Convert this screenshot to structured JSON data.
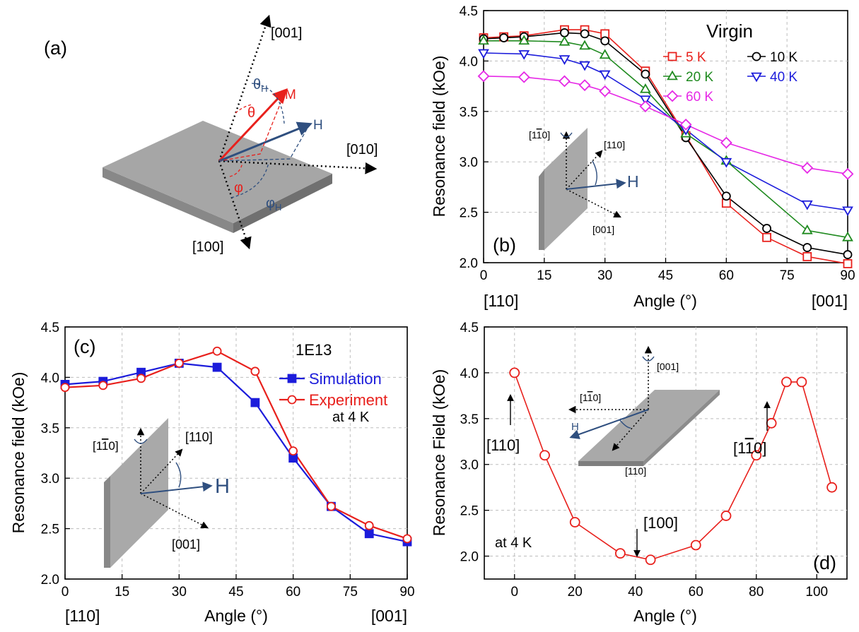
{
  "panel_a": {
    "label": "(a)",
    "axes": {
      "z": "[001]",
      "y": "[010]",
      "x": "[100]"
    },
    "vectors": {
      "magnetization": "M",
      "field": "H"
    },
    "angles": {
      "theta": "θ",
      "theta_h": "θ",
      "theta_h_sub": "H",
      "phi": "φ",
      "phi_h": "φ",
      "phi_h_sub": "H"
    },
    "colors": {
      "magnetization": "#e8201c",
      "field": "#2f4f7f",
      "slab_top": "#a9a9a9",
      "slab_side": "#7a7a7a"
    }
  },
  "chart_data": [
    {
      "id": "b",
      "type": "line",
      "panel_label": "(b)",
      "xlabel": "Angle (°)",
      "ylabel": "Resonance field (kOe)",
      "xlim": [
        0,
        90
      ],
      "ylim": [
        2.0,
        4.5
      ],
      "xticks": [
        0,
        15,
        30,
        45,
        60,
        75,
        90
      ],
      "yticks": [
        2.0,
        2.5,
        3.0,
        3.5,
        4.0,
        4.5
      ],
      "x_ends": {
        "left": "[110]",
        "right": "[001]"
      },
      "grid": true,
      "legend_title": "Virgin",
      "legend_position": "top-right",
      "inset": {
        "rotation_axis": "[1",
        "rotation_axis_bar": "1",
        "rotation_axis_end": "0]",
        "dir_a": "[110]",
        "dir_b": "[001]",
        "field": "H"
      },
      "series": [
        {
          "name": "5 K",
          "color": "#e8201c",
          "marker": "square",
          "x": [
            0,
            5,
            10,
            20,
            25,
            30,
            40,
            50,
            60,
            70,
            80,
            90
          ],
          "y": [
            4.23,
            4.24,
            4.25,
            4.31,
            4.31,
            4.27,
            3.9,
            3.26,
            2.59,
            2.25,
            2.06,
            1.99
          ]
        },
        {
          "name": "10 K",
          "color": "#000000",
          "marker": "circle",
          "x": [
            0,
            5,
            10,
            20,
            25,
            30,
            40,
            50,
            60,
            70,
            80,
            90
          ],
          "y": [
            4.22,
            4.23,
            4.24,
            4.28,
            4.27,
            4.2,
            3.87,
            3.24,
            2.66,
            2.34,
            2.15,
            2.08
          ]
        },
        {
          "name": "20 K",
          "color": "#1f8a1f",
          "marker": "triangle-up",
          "x": [
            0,
            10,
            20,
            25,
            30,
            40,
            50,
            60,
            80,
            90
          ],
          "y": [
            4.2,
            4.2,
            4.19,
            4.15,
            4.06,
            3.72,
            3.28,
            3.01,
            2.32,
            2.25
          ]
        },
        {
          "name": "40 K",
          "color": "#1c1cdb",
          "marker": "triangle-down",
          "x": [
            0,
            10,
            20,
            25,
            30,
            40,
            50,
            60,
            80,
            90
          ],
          "y": [
            4.08,
            4.07,
            4.02,
            3.96,
            3.87,
            3.62,
            3.32,
            3.0,
            2.58,
            2.52
          ]
        },
        {
          "name": "60 K",
          "color": "#e629e6",
          "marker": "diamond",
          "x": [
            0,
            10,
            20,
            25,
            30,
            40,
            50,
            60,
            80,
            90
          ],
          "y": [
            3.85,
            3.84,
            3.8,
            3.76,
            3.7,
            3.55,
            3.37,
            3.19,
            2.94,
            2.88
          ]
        }
      ]
    },
    {
      "id": "c",
      "type": "line",
      "panel_label": "(c)",
      "xlabel": "Angle (°)",
      "ylabel": "Resonance field (kOe)",
      "xlim": [
        0,
        90
      ],
      "ylim": [
        2.0,
        4.5
      ],
      "xticks": [
        0,
        15,
        30,
        45,
        60,
        75,
        90
      ],
      "yticks": [
        2.0,
        2.5,
        3.0,
        3.5,
        4.0,
        4.5
      ],
      "x_ends": {
        "left": "[110]",
        "right": "[001]"
      },
      "grid": true,
      "legend_title": "1E13",
      "legend_note": "at 4 K",
      "legend_position": "top-right",
      "inset": {
        "rotation_axis": "[1",
        "rotation_axis_bar": "1",
        "rotation_axis_end": "0]",
        "dir_a": "[110]",
        "dir_b": "[001]",
        "field": "H"
      },
      "series": [
        {
          "name": "Simulation",
          "color": "#1c1cdb",
          "marker": "filled-square",
          "x": [
            0,
            10,
            20,
            30,
            40,
            50,
            60,
            70,
            80,
            90
          ],
          "y": [
            3.93,
            3.96,
            4.05,
            4.14,
            4.1,
            3.75,
            3.2,
            2.72,
            2.45,
            2.37
          ]
        },
        {
          "name": "Experiment",
          "color": "#e8201c",
          "marker": "circle",
          "x": [
            0,
            10,
            20,
            30,
            40,
            50,
            60,
            70,
            80,
            90
          ],
          "y": [
            3.9,
            3.92,
            3.99,
            4.14,
            4.26,
            4.06,
            3.27,
            2.72,
            2.53,
            2.4
          ]
        }
      ]
    },
    {
      "id": "d",
      "type": "line",
      "panel_label": "(d)",
      "xlabel": "Angle (°)",
      "ylabel": "Resonance Field (kOe)",
      "xlim": [
        -10,
        110
      ],
      "ylim": [
        1.75,
        4.5
      ],
      "xticks": [
        0,
        20,
        40,
        60,
        80,
        100
      ],
      "yticks": [
        2.0,
        2.5,
        3.0,
        3.5,
        4.0,
        4.5
      ],
      "grid": true,
      "note": "at 4 K",
      "annotations": {
        "a110": "[110]",
        "a100": "[100]",
        "a1b10_open": "[1",
        "a1b10_bar": "1",
        "a1b10_close": "0]"
      },
      "inset": {
        "rotation_axis": "[001]",
        "dir_a_open": "[1",
        "dir_a_bar": "1",
        "dir_a_close": "0]",
        "dir_b": "[110]",
        "field": "H"
      },
      "series": [
        {
          "color": "#e8201c",
          "marker": "circle",
          "x": [
            0,
            10,
            20,
            35,
            45,
            60,
            70,
            80,
            85,
            90,
            95,
            105
          ],
          "y": [
            4.0,
            3.1,
            2.37,
            2.03,
            1.96,
            2.12,
            2.44,
            3.1,
            3.45,
            3.9,
            3.9,
            2.75
          ]
        }
      ]
    }
  ]
}
